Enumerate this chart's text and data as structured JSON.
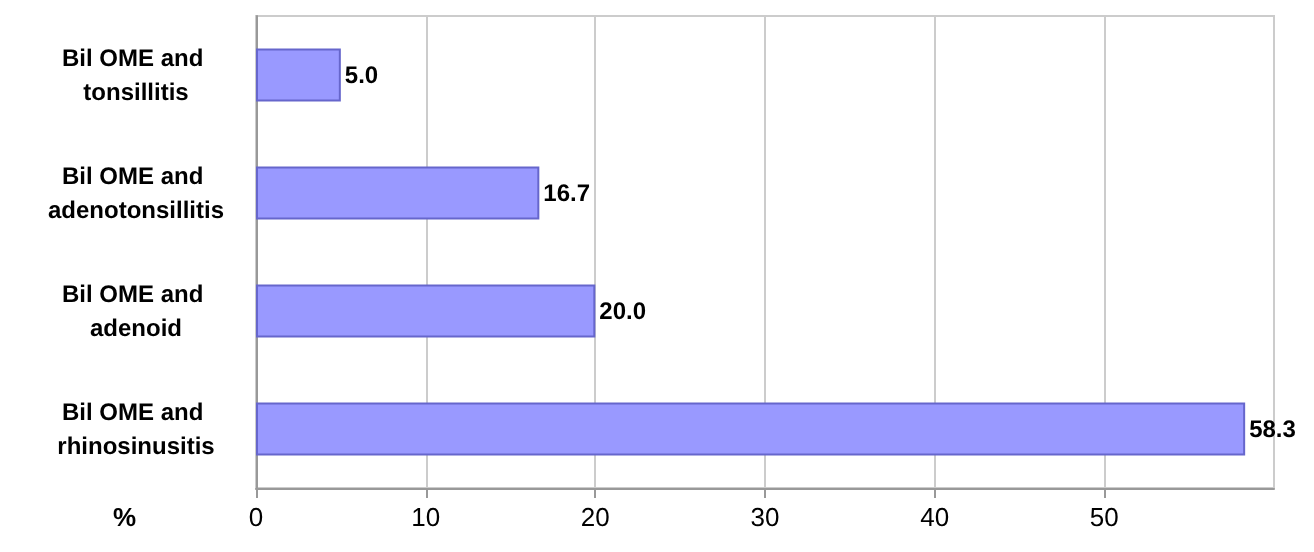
{
  "chart_data": {
    "type": "bar",
    "orientation": "horizontal",
    "xlabel": "%",
    "categories": [
      "Bil OME and tonsillitis",
      "Bil OME and adenotonsillitis",
      "Bil OME and adenoid",
      "Bil OME and rhinosinusitis"
    ],
    "values": [
      5.0,
      16.7,
      20.0,
      58.3
    ],
    "value_labels": [
      "5.0",
      "16.7",
      "20.0",
      "58.3"
    ],
    "color": "#9999ff",
    "xlim": [
      0,
      60
    ],
    "xticks": [
      0,
      10,
      20,
      30,
      40,
      50
    ],
    "grid": "x"
  }
}
